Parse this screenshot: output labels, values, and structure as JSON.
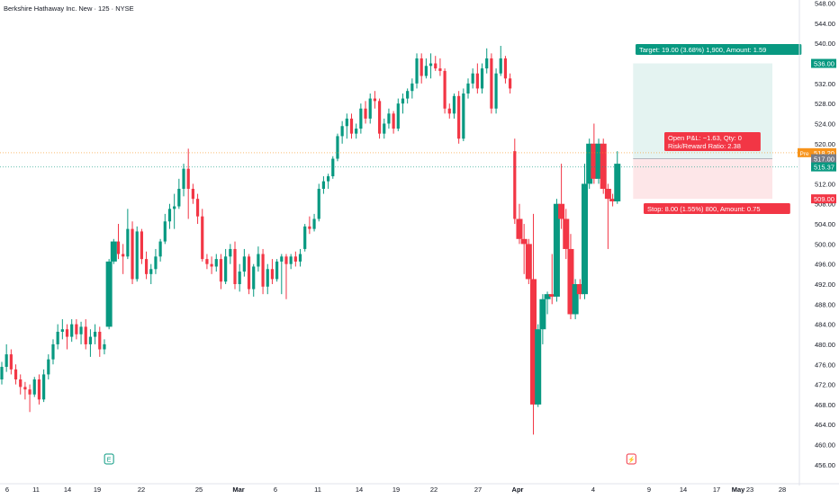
{
  "title": "Berkshire Hathaway Inc. New · 125 · NYSE",
  "chart_data": {
    "type": "candlestick",
    "y_axis": {
      "min": 454,
      "max": 549,
      "ticks": [
        456,
        460,
        464,
        468,
        472,
        476,
        480,
        484,
        488,
        492,
        496,
        500,
        504,
        508,
        512,
        516,
        520,
        524,
        528,
        532,
        536,
        540,
        544,
        548
      ]
    },
    "x_axis_labels": [
      "6",
      "11",
      "14",
      "19",
      "22",
      "25",
      "Mar",
      "6",
      "11",
      "14",
      "19",
      "22",
      "27",
      "Apr",
      "4",
      "9",
      "14",
      "17",
      "23",
      "28",
      "May"
    ],
    "candles": [
      {
        "o": 473.0,
        "h": 476.5,
        "l": 472.0,
        "c": 475.5
      },
      {
        "o": 475.5,
        "h": 480.0,
        "l": 474.5,
        "c": 478.0
      },
      {
        "o": 478.0,
        "h": 479.0,
        "l": 474.0,
        "c": 475.0
      },
      {
        "o": 475.0,
        "h": 476.0,
        "l": 472.0,
        "c": 473.0
      },
      {
        "o": 473.0,
        "h": 474.0,
        "l": 470.0,
        "c": 471.5
      },
      {
        "o": 471.5,
        "h": 472.5,
        "l": 469.0,
        "c": 471.0
      },
      {
        "o": 471.0,
        "h": 472.0,
        "l": 466.5,
        "c": 470.0
      },
      {
        "o": 470.0,
        "h": 473.5,
        "l": 469.5,
        "c": 473.0
      },
      {
        "o": 473.0,
        "h": 474.0,
        "l": 468.0,
        "c": 469.0
      },
      {
        "o": 469.0,
        "h": 475.0,
        "l": 468.5,
        "c": 474.0
      },
      {
        "o": 474.0,
        "h": 478.0,
        "l": 473.0,
        "c": 477.0
      },
      {
        "o": 477.0,
        "h": 481.0,
        "l": 476.0,
        "c": 480.0
      },
      {
        "o": 480.0,
        "h": 484.0,
        "l": 479.0,
        "c": 482.5
      },
      {
        "o": 482.5,
        "h": 485.0,
        "l": 481.0,
        "c": 483.0
      },
      {
        "o": 483.0,
        "h": 484.0,
        "l": 479.0,
        "c": 481.5
      },
      {
        "o": 481.5,
        "h": 485.0,
        "l": 480.5,
        "c": 484.0
      },
      {
        "o": 484.0,
        "h": 485.0,
        "l": 481.0,
        "c": 482.0
      },
      {
        "o": 482.0,
        "h": 484.5,
        "l": 480.0,
        "c": 483.5
      },
      {
        "o": 483.5,
        "h": 485.0,
        "l": 479.0,
        "c": 480.0
      },
      {
        "o": 480.0,
        "h": 483.0,
        "l": 477.5,
        "c": 481.5
      },
      {
        "o": 481.5,
        "h": 484.0,
        "l": 480.0,
        "c": 482.5
      },
      {
        "o": 482.5,
        "h": 483.5,
        "l": 477.5,
        "c": 479.0
      },
      {
        "o": 479.0,
        "h": 481.0,
        "l": 478.0,
        "c": 480.0
      },
      {
        "o": 483.5,
        "h": 497.0,
        "l": 483.0,
        "c": 496.5
      },
      {
        "o": 496.5,
        "h": 501.0,
        "l": 496.0,
        "c": 500.5
      },
      {
        "o": 500.5,
        "h": 504.0,
        "l": 497.0,
        "c": 498.0
      },
      {
        "o": 498.0,
        "h": 500.0,
        "l": 494.0,
        "c": 497.5
      },
      {
        "o": 497.5,
        "h": 507.0,
        "l": 497.0,
        "c": 503.0
      },
      {
        "o": 503.0,
        "h": 504.5,
        "l": 492.0,
        "c": 493.0
      },
      {
        "o": 493.0,
        "h": 503.5,
        "l": 492.5,
        "c": 502.5
      },
      {
        "o": 502.5,
        "h": 503.0,
        "l": 496.0,
        "c": 497.0
      },
      {
        "o": 497.0,
        "h": 498.5,
        "l": 493.0,
        "c": 494.0
      },
      {
        "o": 494.0,
        "h": 496.0,
        "l": 492.0,
        "c": 495.0
      },
      {
        "o": 495.0,
        "h": 499.0,
        "l": 494.0,
        "c": 497.5
      },
      {
        "o": 497.5,
        "h": 501.0,
        "l": 496.5,
        "c": 500.5
      },
      {
        "o": 500.5,
        "h": 506.0,
        "l": 500.0,
        "c": 504.5
      },
      {
        "o": 504.5,
        "h": 508.0,
        "l": 503.0,
        "c": 507.0
      },
      {
        "o": 507.0,
        "h": 510.0,
        "l": 503.0,
        "c": 507.5
      },
      {
        "o": 507.5,
        "h": 513.0,
        "l": 507.0,
        "c": 511.0
      },
      {
        "o": 511.0,
        "h": 516.0,
        "l": 509.5,
        "c": 515.0
      },
      {
        "o": 515.0,
        "h": 519.0,
        "l": 505.0,
        "c": 511.0
      },
      {
        "o": 511.0,
        "h": 512.0,
        "l": 508.0,
        "c": 509.0
      },
      {
        "o": 509.0,
        "h": 510.0,
        "l": 504.0,
        "c": 505.5
      },
      {
        "o": 505.5,
        "h": 507.0,
        "l": 496.5,
        "c": 497.0
      },
      {
        "o": 497.0,
        "h": 498.0,
        "l": 495.0,
        "c": 496.0
      },
      {
        "o": 496.0,
        "h": 497.5,
        "l": 494.0,
        "c": 495.5
      },
      {
        "o": 495.5,
        "h": 498.0,
        "l": 494.5,
        "c": 497.0
      },
      {
        "o": 497.0,
        "h": 498.0,
        "l": 491.0,
        "c": 492.5
      },
      {
        "o": 492.5,
        "h": 499.0,
        "l": 492.0,
        "c": 497.5
      },
      {
        "o": 497.5,
        "h": 500.0,
        "l": 496.0,
        "c": 499.0
      },
      {
        "o": 499.0,
        "h": 500.5,
        "l": 491.0,
        "c": 492.0
      },
      {
        "o": 492.0,
        "h": 496.0,
        "l": 490.5,
        "c": 494.5
      },
      {
        "o": 494.5,
        "h": 499.0,
        "l": 493.5,
        "c": 497.5
      },
      {
        "o": 497.5,
        "h": 498.0,
        "l": 490.0,
        "c": 491.0
      },
      {
        "o": 491.0,
        "h": 496.0,
        "l": 489.5,
        "c": 495.5
      },
      {
        "o": 495.5,
        "h": 499.5,
        "l": 494.5,
        "c": 498.0
      },
      {
        "o": 498.0,
        "h": 499.0,
        "l": 490.0,
        "c": 491.5
      },
      {
        "o": 491.5,
        "h": 496.0,
        "l": 490.0,
        "c": 495.0
      },
      {
        "o": 495.0,
        "h": 497.0,
        "l": 492.0,
        "c": 493.0
      },
      {
        "o": 493.0,
        "h": 497.0,
        "l": 492.5,
        "c": 496.5
      },
      {
        "o": 496.5,
        "h": 498.0,
        "l": 490.0,
        "c": 497.5
      },
      {
        "o": 497.5,
        "h": 498.0,
        "l": 489.0,
        "c": 496.0
      },
      {
        "o": 496.0,
        "h": 498.0,
        "l": 495.0,
        "c": 497.5
      },
      {
        "o": 497.5,
        "h": 498.5,
        "l": 495.5,
        "c": 496.5
      },
      {
        "o": 496.5,
        "h": 499.0,
        "l": 495.5,
        "c": 498.0
      },
      {
        "o": 499.0,
        "h": 504.0,
        "l": 498.5,
        "c": 503.5
      },
      {
        "o": 503.5,
        "h": 505.5,
        "l": 502.0,
        "c": 503.0
      },
      {
        "o": 503.0,
        "h": 506.0,
        "l": 502.5,
        "c": 505.0
      },
      {
        "o": 505.0,
        "h": 512.0,
        "l": 504.5,
        "c": 511.0
      },
      {
        "o": 511.0,
        "h": 513.5,
        "l": 510.0,
        "c": 512.5
      },
      {
        "o": 512.5,
        "h": 514.0,
        "l": 511.0,
        "c": 513.5
      },
      {
        "o": 513.5,
        "h": 517.5,
        "l": 513.0,
        "c": 517.0
      },
      {
        "o": 517.0,
        "h": 522.0,
        "l": 516.5,
        "c": 521.5
      },
      {
        "o": 521.5,
        "h": 524.5,
        "l": 520.0,
        "c": 523.5
      },
      {
        "o": 523.5,
        "h": 526.0,
        "l": 521.0,
        "c": 525.0
      },
      {
        "o": 525.0,
        "h": 526.0,
        "l": 521.0,
        "c": 522.0
      },
      {
        "o": 522.0,
        "h": 524.0,
        "l": 521.0,
        "c": 523.0
      },
      {
        "o": 523.0,
        "h": 528.0,
        "l": 522.0,
        "c": 527.0
      },
      {
        "o": 527.0,
        "h": 528.5,
        "l": 524.0,
        "c": 525.0
      },
      {
        "o": 525.0,
        "h": 530.0,
        "l": 524.0,
        "c": 529.0
      },
      {
        "o": 529.0,
        "h": 530.5,
        "l": 527.0,
        "c": 528.5
      },
      {
        "o": 528.5,
        "h": 529.0,
        "l": 521.0,
        "c": 522.0
      },
      {
        "o": 522.0,
        "h": 525.0,
        "l": 521.0,
        "c": 524.0
      },
      {
        "o": 524.0,
        "h": 527.0,
        "l": 523.0,
        "c": 526.0
      },
      {
        "o": 526.0,
        "h": 526.5,
        "l": 522.0,
        "c": 523.0
      },
      {
        "o": 523.0,
        "h": 529.0,
        "l": 522.5,
        "c": 528.0
      },
      {
        "o": 528.0,
        "h": 530.0,
        "l": 526.0,
        "c": 529.0
      },
      {
        "o": 529.0,
        "h": 531.0,
        "l": 528.0,
        "c": 530.5
      },
      {
        "o": 530.5,
        "h": 533.0,
        "l": 529.0,
        "c": 532.0
      },
      {
        "o": 532.0,
        "h": 538.0,
        "l": 531.0,
        "c": 537.0
      },
      {
        "o": 537.0,
        "h": 538.0,
        "l": 532.0,
        "c": 533.5
      },
      {
        "o": 533.5,
        "h": 537.0,
        "l": 533.0,
        "c": 535.5
      },
      {
        "o": 535.5,
        "h": 538.0,
        "l": 533.0,
        "c": 536.0
      },
      {
        "o": 536.0,
        "h": 537.5,
        "l": 534.5,
        "c": 535.0
      },
      {
        "o": 535.0,
        "h": 537.0,
        "l": 533.5,
        "c": 534.5
      },
      {
        "o": 534.5,
        "h": 535.0,
        "l": 526.0,
        "c": 527.0
      },
      {
        "o": 527.0,
        "h": 528.0,
        "l": 525.0,
        "c": 526.0
      },
      {
        "o": 526.0,
        "h": 530.0,
        "l": 525.0,
        "c": 529.5
      },
      {
        "o": 529.5,
        "h": 530.5,
        "l": 520.0,
        "c": 521.0
      },
      {
        "o": 521.0,
        "h": 531.0,
        "l": 520.5,
        "c": 530.0
      },
      {
        "o": 530.0,
        "h": 533.0,
        "l": 529.0,
        "c": 532.0
      },
      {
        "o": 532.0,
        "h": 535.0,
        "l": 531.0,
        "c": 534.0
      },
      {
        "o": 534.0,
        "h": 536.0,
        "l": 530.0,
        "c": 531.0
      },
      {
        "o": 531.0,
        "h": 536.0,
        "l": 530.0,
        "c": 535.0
      },
      {
        "o": 535.0,
        "h": 539.0,
        "l": 534.0,
        "c": 537.0
      },
      {
        "o": 537.0,
        "h": 538.0,
        "l": 526.0,
        "c": 527.0
      },
      {
        "o": 527.0,
        "h": 535.0,
        "l": 526.0,
        "c": 534.0
      },
      {
        "o": 534.0,
        "h": 539.5,
        "l": 533.5,
        "c": 537.0
      },
      {
        "o": 537.0,
        "h": 537.5,
        "l": 532.0,
        "c": 533.0
      },
      {
        "o": 533.0,
        "h": 534.0,
        "l": 530.0,
        "c": 531.0
      },
      {
        "o": 518.5,
        "h": 521.0,
        "l": 504.0,
        "c": 505.0
      },
      {
        "o": 505.0,
        "h": 508.0,
        "l": 500.0,
        "c": 501.0
      },
      {
        "o": 501.0,
        "h": 504.0,
        "l": 494.0,
        "c": 500.0
      },
      {
        "o": 500.0,
        "h": 501.0,
        "l": 492.0,
        "c": 493.0
      },
      {
        "o": 493.0,
        "h": 506.0,
        "l": 462.0,
        "c": 468.0
      },
      {
        "o": 468.0,
        "h": 484.0,
        "l": 467.5,
        "c": 483.0
      },
      {
        "o": 483.0,
        "h": 490.0,
        "l": 480.0,
        "c": 489.0
      },
      {
        "o": 489.0,
        "h": 490.5,
        "l": 486.0,
        "c": 490.0
      },
      {
        "o": 490.0,
        "h": 498.0,
        "l": 488.0,
        "c": 489.5
      },
      {
        "o": 489.5,
        "h": 509.0,
        "l": 488.5,
        "c": 508.0
      },
      {
        "o": 508.0,
        "h": 516.0,
        "l": 503.0,
        "c": 505.0
      },
      {
        "o": 505.0,
        "h": 507.0,
        "l": 497.0,
        "c": 499.0
      },
      {
        "o": 499.0,
        "h": 502.0,
        "l": 485.0,
        "c": 486.0
      },
      {
        "o": 486.0,
        "h": 493.0,
        "l": 485.0,
        "c": 492.0
      },
      {
        "o": 492.0,
        "h": 493.0,
        "l": 489.0,
        "c": 490.0
      },
      {
        "o": 490.0,
        "h": 516.0,
        "l": 489.0,
        "c": 512.0
      },
      {
        "o": 512.0,
        "h": 521.0,
        "l": 511.0,
        "c": 520.0
      },
      {
        "o": 520.0,
        "h": 524.0,
        "l": 512.0,
        "c": 513.0
      },
      {
        "o": 513.0,
        "h": 521.0,
        "l": 512.0,
        "c": 520.0
      },
      {
        "o": 520.0,
        "h": 521.0,
        "l": 510.0,
        "c": 511.0
      },
      {
        "o": 511.0,
        "h": 512.0,
        "l": 499.0,
        "c": 509.0
      },
      {
        "o": 509.0,
        "h": 510.0,
        "l": 507.5,
        "c": 508.5
      },
      {
        "o": 508.5,
        "h": 518.5,
        "l": 508.0,
        "c": 516.0
      }
    ],
    "events": [
      {
        "label": "E",
        "candle_index": 23
      },
      {
        "label": "⚡",
        "candle_index": 135
      }
    ],
    "position": {
      "entry": 517.0,
      "target": 536.0,
      "stop": 509.0,
      "start_candle": 135,
      "target_label": "Target: 19.00 (3.68%) 1,900, Amount: 1.59",
      "pnl_label": "Open P&L: −1.63, Qty: 0",
      "rr_label": "Risk/Reward Ratio: 2.38",
      "stop_label": "Stop: 8.00 (1.55%) 800, Amount: 0.75"
    },
    "price_tags": {
      "target": "536.00",
      "pre_label": "Pre",
      "pre_value": "518.20",
      "pre_price": 518.2,
      "entry": "517.00",
      "last": "515.37",
      "last_price": 515.37,
      "stop": "509.00"
    },
    "colors": {
      "up": "#089981",
      "down": "#f23645",
      "profit_zone": "#e4f3f1",
      "loss_zone": "#fde6e8",
      "pre": "#f7931a"
    }
  }
}
